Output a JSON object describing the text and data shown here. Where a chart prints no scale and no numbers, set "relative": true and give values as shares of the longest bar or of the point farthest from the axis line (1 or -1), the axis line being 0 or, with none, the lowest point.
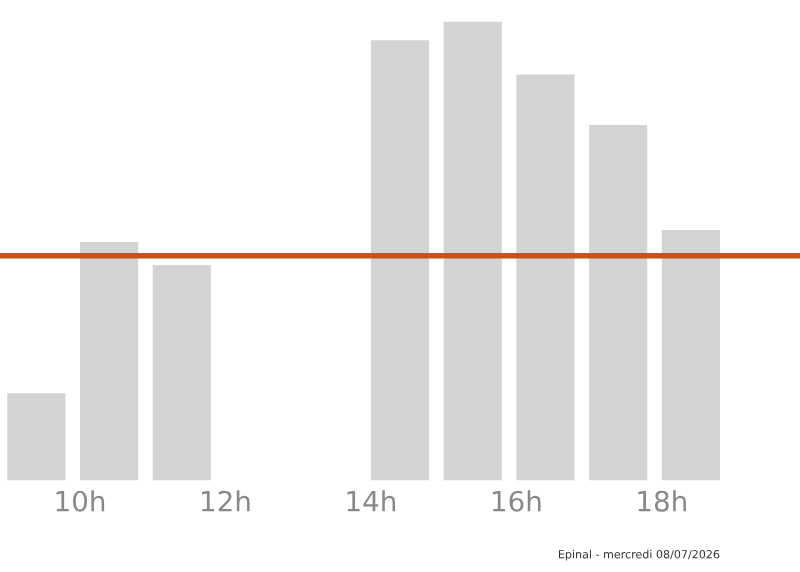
{
  "chart_data": {
    "type": "bar",
    "relative": true,
    "x": [
      9.4,
      10.4,
      11.4,
      12.4,
      13.4,
      14.4,
      15.4,
      16.4,
      17.4,
      18.4,
      19.4
    ],
    "values": [
      0.19,
      0.52,
      0.47,
      0,
      0,
      0.96,
      1,
      0.885,
      0.775,
      0.546,
      0
    ],
    "color": "#d3d3d3",
    "xlim": [
      8.9,
      19.9
    ],
    "xticks": [
      {
        "value": 10,
        "label": "10h"
      },
      {
        "value": 12,
        "label": "12h"
      },
      {
        "value": 14,
        "label": "14h"
      },
      {
        "value": 16,
        "label": "16h"
      },
      {
        "value": 18,
        "label": "18h"
      }
    ],
    "ref_lines": [
      {
        "axis": "y",
        "value": 0.49,
        "color": "#c0561a"
      }
    ],
    "grid": false,
    "tick_labels": "x",
    "annotations": [
      "Epinal - mercredi 08/07/2026"
    ]
  }
}
